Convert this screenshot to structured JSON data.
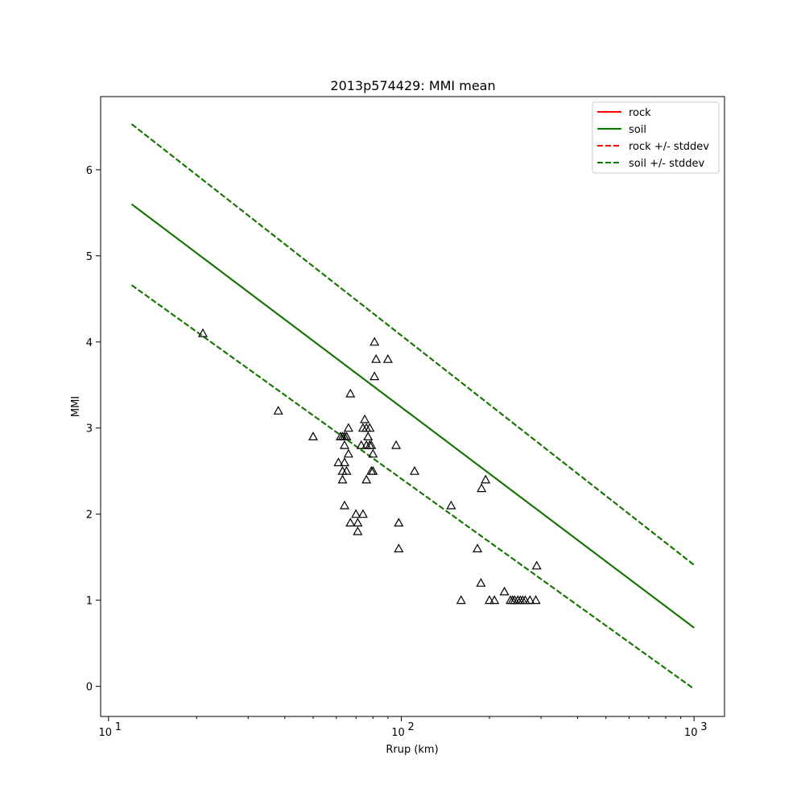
{
  "chart_data": {
    "type": "scatter",
    "title": "2013p574429: MMI mean",
    "xlabel": "Rrup (km)",
    "ylabel": "MMI",
    "xscale": "log",
    "xlim": [
      9.4,
      1270
    ],
    "ylim": [
      -0.35,
      6.85
    ],
    "xticks": [
      {
        "value": 10,
        "base": "10",
        "exp": "1"
      },
      {
        "value": 100,
        "base": "10",
        "exp": "2"
      },
      {
        "value": 1000,
        "base": "10",
        "exp": "3"
      }
    ],
    "yticks": [
      "0",
      "1",
      "2",
      "3",
      "4",
      "5",
      "6"
    ],
    "grid": false,
    "legend_position": "top-right",
    "series": [
      {
        "name": "rock",
        "kind": "line",
        "style": "solid",
        "color": "#ff0000",
        "x": [
          12,
          1000
        ],
        "y": [
          5.6,
          0.68
        ]
      },
      {
        "name": "soil",
        "kind": "line",
        "style": "solid",
        "color": "#008000",
        "x": [
          12,
          1000
        ],
        "y": [
          5.6,
          0.68
        ]
      },
      {
        "name": "rock +/- stddev",
        "kind": "line",
        "style": "dashed",
        "color": "#ff0000",
        "lines": [
          {
            "x": [
              12,
              1000
            ],
            "y": [
              6.53,
              1.41
            ]
          },
          {
            "x": [
              12,
              1000
            ],
            "y": [
              4.66,
              -0.03
            ]
          }
        ]
      },
      {
        "name": "soil +/- stddev",
        "kind": "line",
        "style": "dashed",
        "color": "#008000",
        "lines": [
          {
            "x": [
              12,
              1000
            ],
            "y": [
              6.53,
              1.41
            ]
          },
          {
            "x": [
              12,
              1000
            ],
            "y": [
              4.66,
              -0.03
            ]
          }
        ]
      }
    ],
    "observations": {
      "marker": "triangle-open",
      "color": "#000000",
      "points": [
        [
          21,
          4.1
        ],
        [
          38,
          3.2
        ],
        [
          50,
          2.9
        ],
        [
          61,
          2.6
        ],
        [
          62,
          2.9
        ],
        [
          63,
          2.9
        ],
        [
          63,
          2.5
        ],
        [
          63,
          2.4
        ],
        [
          64,
          2.8
        ],
        [
          64,
          2.9
        ],
        [
          64,
          2.6
        ],
        [
          64,
          2.1
        ],
        [
          65,
          2.5
        ],
        [
          65,
          2.9
        ],
        [
          66,
          3.0
        ],
        [
          66,
          2.7
        ],
        [
          67,
          1.9
        ],
        [
          67,
          3.4
        ],
        [
          70,
          2.0
        ],
        [
          71,
          1.9
        ],
        [
          71,
          1.8
        ],
        [
          73,
          2.8
        ],
        [
          74,
          2.0
        ],
        [
          74,
          3.0
        ],
        [
          75,
          3.1
        ],
        [
          76,
          3.0
        ],
        [
          76,
          2.4
        ],
        [
          76,
          2.8
        ],
        [
          77,
          2.9
        ],
        [
          78,
          2.8
        ],
        [
          78,
          3.0
        ],
        [
          79,
          2.8
        ],
        [
          79,
          2.5
        ],
        [
          80,
          2.5
        ],
        [
          80,
          2.7
        ],
        [
          81,
          3.6
        ],
        [
          81,
          4.0
        ],
        [
          82,
          3.8
        ],
        [
          90,
          3.8
        ],
        [
          96,
          2.8
        ],
        [
          98,
          1.9
        ],
        [
          98,
          1.6
        ],
        [
          111,
          2.5
        ],
        [
          148,
          2.1
        ],
        [
          160,
          1.0
        ],
        [
          182,
          1.6
        ],
        [
          187,
          1.2
        ],
        [
          188,
          2.3
        ],
        [
          194,
          2.4
        ],
        [
          200,
          1.0
        ],
        [
          208,
          1.0
        ],
        [
          225,
          1.1
        ],
        [
          236,
          1.0
        ],
        [
          240,
          1.0
        ],
        [
          244,
          1.0
        ],
        [
          250,
          1.0
        ],
        [
          255,
          1.0
        ],
        [
          260,
          1.0
        ],
        [
          265,
          1.0
        ],
        [
          275,
          1.0
        ],
        [
          288,
          1.0
        ],
        [
          290,
          1.4
        ]
      ]
    }
  }
}
